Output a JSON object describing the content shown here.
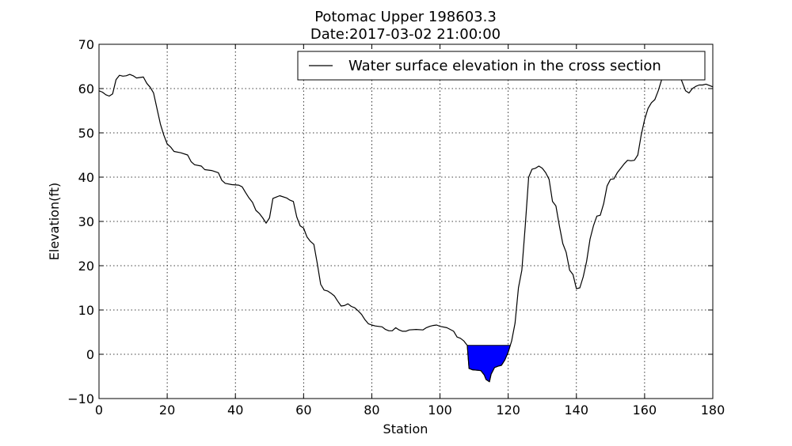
{
  "chart_data": {
    "type": "line",
    "title_line1": "Potomac Upper 198603.3",
    "title_line2": "Date:2017-03-02 21:00:00",
    "xlabel": "Station",
    "ylabel": "Elevation(ft)",
    "xlim": [
      0,
      180
    ],
    "ylim": [
      -10,
      70
    ],
    "x_ticks": [
      0,
      20,
      40,
      60,
      80,
      100,
      120,
      140,
      160,
      180
    ],
    "y_ticks": [
      -10,
      0,
      10,
      20,
      30,
      40,
      50,
      60,
      70
    ],
    "x_tick_labels": [
      "0",
      "20",
      "40",
      "60",
      "80",
      "100",
      "120",
      "140",
      "160",
      "180"
    ],
    "y_tick_labels": [
      "−10",
      "0",
      "10",
      "20",
      "30",
      "40",
      "50",
      "60",
      "70"
    ],
    "grid": true,
    "legend_position": "top-right",
    "legend_label": "Water surface elevation in the cross section",
    "series": [
      {
        "name": "Water surface elevation in the cross section",
        "color": "#000000",
        "points": [
          [
            0,
            59.5
          ],
          [
            1,
            59.2
          ],
          [
            2,
            58.6
          ],
          [
            3,
            58.3
          ],
          [
            4,
            58.8
          ],
          [
            5,
            62.0
          ],
          [
            6,
            63.0
          ],
          [
            7,
            62.8
          ],
          [
            8,
            62.9
          ],
          [
            9,
            63.2
          ],
          [
            10,
            62.9
          ],
          [
            11,
            62.4
          ],
          [
            12,
            62.5
          ],
          [
            13,
            62.6
          ],
          [
            14,
            61.2
          ],
          [
            15,
            60.3
          ],
          [
            16,
            59.0
          ],
          [
            17,
            55.5
          ],
          [
            18,
            52.0
          ],
          [
            19,
            49.5
          ],
          [
            20,
            47.5
          ],
          [
            21,
            46.8
          ],
          [
            22,
            45.8
          ],
          [
            24,
            45.5
          ],
          [
            26,
            45.0
          ],
          [
            27,
            43.5
          ],
          [
            28,
            42.8
          ],
          [
            30,
            42.5
          ],
          [
            31,
            41.7
          ],
          [
            33,
            41.5
          ],
          [
            35,
            41.0
          ],
          [
            36,
            39.3
          ],
          [
            37,
            38.6
          ],
          [
            39,
            38.3
          ],
          [
            41,
            38.2
          ],
          [
            42,
            37.8
          ],
          [
            43,
            36.5
          ],
          [
            44,
            35.3
          ],
          [
            45,
            34.3
          ],
          [
            46,
            32.5
          ],
          [
            47,
            31.8
          ],
          [
            48,
            30.8
          ],
          [
            49,
            29.6
          ],
          [
            50,
            30.8
          ],
          [
            51,
            35.2
          ],
          [
            52,
            35.5
          ],
          [
            53,
            35.8
          ],
          [
            55,
            35.3
          ],
          [
            56,
            34.8
          ],
          [
            57,
            34.5
          ],
          [
            58,
            31.0
          ],
          [
            59,
            29.0
          ],
          [
            60,
            28.5
          ],
          [
            61,
            26.5
          ],
          [
            62,
            25.5
          ],
          [
            63,
            24.8
          ],
          [
            64,
            20.5
          ],
          [
            65,
            15.8
          ],
          [
            66,
            14.5
          ],
          [
            67,
            14.3
          ],
          [
            68,
            13.8
          ],
          [
            69,
            13.2
          ],
          [
            70,
            12.0
          ],
          [
            71,
            10.9
          ],
          [
            72,
            11.0
          ],
          [
            73,
            11.4
          ],
          [
            74,
            10.8
          ],
          [
            75,
            10.5
          ],
          [
            76,
            9.8
          ],
          [
            77,
            9.0
          ],
          [
            78,
            7.8
          ],
          [
            79,
            6.9
          ],
          [
            80,
            6.6
          ],
          [
            81,
            6.4
          ],
          [
            83,
            6.2
          ],
          [
            84,
            5.6
          ],
          [
            85,
            5.3
          ],
          [
            86,
            5.3
          ],
          [
            87,
            6.0
          ],
          [
            88,
            5.5
          ],
          [
            89,
            5.2
          ],
          [
            90,
            5.2
          ],
          [
            91,
            5.5
          ],
          [
            93,
            5.6
          ],
          [
            95,
            5.5
          ],
          [
            96,
            6.0
          ],
          [
            97,
            6.3
          ],
          [
            98,
            6.5
          ],
          [
            99,
            6.6
          ],
          [
            100,
            6.3
          ],
          [
            102,
            6.0
          ],
          [
            103,
            5.6
          ],
          [
            104,
            5.2
          ],
          [
            105,
            3.9
          ],
          [
            106,
            3.6
          ],
          [
            107,
            3.0
          ],
          [
            108,
            2.0
          ],
          [
            108.5,
            -3.2
          ],
          [
            109.5,
            -3.5
          ],
          [
            111,
            -3.6
          ],
          [
            112,
            -3.7
          ],
          [
            113,
            -4.7
          ],
          [
            113.5,
            -5.7
          ],
          [
            114.5,
            -6.2
          ],
          [
            115,
            -4.5
          ],
          [
            116,
            -3.0
          ],
          [
            117,
            -2.7
          ],
          [
            118,
            -2.5
          ],
          [
            119,
            -1.3
          ],
          [
            120,
            0.5
          ],
          [
            121,
            3.0
          ],
          [
            122,
            7.0
          ],
          [
            123,
            15.0
          ],
          [
            124,
            19.0
          ],
          [
            125,
            29.0
          ],
          [
            126,
            40.0
          ],
          [
            127,
            41.8
          ],
          [
            128,
            42.0
          ],
          [
            129,
            42.5
          ],
          [
            130,
            42.0
          ],
          [
            131,
            41.0
          ],
          [
            132,
            39.5
          ],
          [
            133,
            34.5
          ],
          [
            134,
            33.5
          ],
          [
            135,
            29.0
          ],
          [
            136,
            25.0
          ],
          [
            137,
            23.0
          ],
          [
            138,
            19.0
          ],
          [
            139,
            18.0
          ],
          [
            140,
            14.8
          ],
          [
            141,
            15.0
          ],
          [
            142,
            17.5
          ],
          [
            143,
            21.0
          ],
          [
            144,
            26.0
          ],
          [
            145,
            29.0
          ],
          [
            146,
            31.2
          ],
          [
            147,
            31.4
          ],
          [
            148,
            34.0
          ],
          [
            149,
            38.0
          ],
          [
            150,
            39.5
          ],
          [
            151,
            39.6
          ],
          [
            152,
            41.0
          ],
          [
            153,
            42.0
          ],
          [
            154,
            43.0
          ],
          [
            155,
            43.8
          ],
          [
            156,
            43.7
          ],
          [
            157,
            43.8
          ],
          [
            158,
            45.0
          ],
          [
            159,
            49.5
          ],
          [
            160,
            53.0
          ],
          [
            161,
            55.5
          ],
          [
            162,
            56.8
          ],
          [
            163,
            57.5
          ],
          [
            164,
            59.5
          ],
          [
            165,
            62.0
          ],
          [
            166,
            63.8
          ],
          [
            167,
            65.0
          ],
          [
            168,
            65.2
          ],
          [
            169,
            65.3
          ],
          [
            170,
            63.5
          ],
          [
            171,
            61.5
          ],
          [
            172,
            59.5
          ],
          [
            173,
            59.0
          ],
          [
            174,
            60.0
          ],
          [
            175,
            60.5
          ],
          [
            176,
            60.8
          ],
          [
            177,
            60.8
          ],
          [
            178,
            61.0
          ],
          [
            179,
            60.7
          ],
          [
            180,
            60.4
          ]
        ]
      }
    ],
    "water": {
      "elevation": 2.0,
      "x_start": 108,
      "x_end": 120.6,
      "fill_color": "#0000ff",
      "edge_color": "#000000"
    }
  }
}
